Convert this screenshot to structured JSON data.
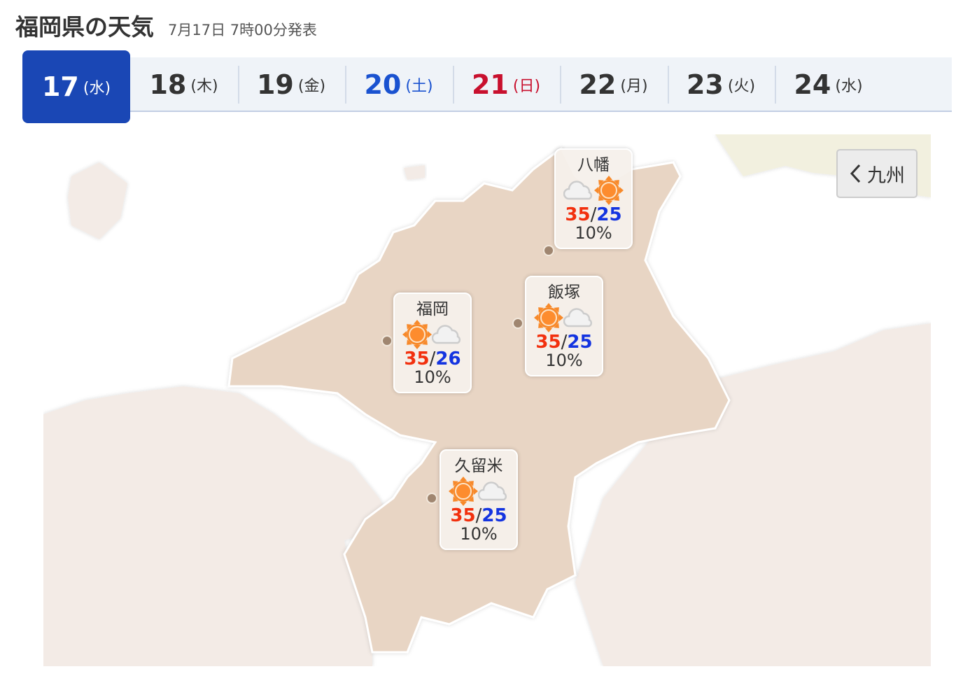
{
  "header": {
    "title": "福岡県の天気",
    "issued": "7月17日 7時00分発表"
  },
  "tabs": [
    {
      "day": "17",
      "weekday": "(水)",
      "color": "#ffffff",
      "active": true
    },
    {
      "day": "18",
      "weekday": "(木)",
      "color": "#333333"
    },
    {
      "day": "19",
      "weekday": "(金)",
      "color": "#333333"
    },
    {
      "day": "20",
      "weekday": "(土)",
      "color": "#1a52d0"
    },
    {
      "day": "21",
      "weekday": "(日)",
      "color": "#c8102e"
    },
    {
      "day": "22",
      "weekday": "(月)",
      "color": "#333333"
    },
    {
      "day": "23",
      "weekday": "(火)",
      "color": "#333333"
    },
    {
      "day": "24",
      "weekday": "(水)",
      "color": "#333333"
    }
  ],
  "back_button": {
    "label": "九州",
    "icon": "chevron-left-icon"
  },
  "cities": [
    {
      "name": "八幡",
      "icons": [
        "cloud",
        "sun"
      ],
      "high": "35",
      "low": "25",
      "rain": "10%"
    },
    {
      "name": "飯塚",
      "icons": [
        "sun",
        "cloud"
      ],
      "high": "35",
      "low": "25",
      "rain": "10%"
    },
    {
      "name": "福岡",
      "icons": [
        "sun",
        "cloud"
      ],
      "high": "35",
      "low": "26",
      "rain": "10%"
    },
    {
      "name": "久留米",
      "icons": [
        "sun",
        "cloud"
      ],
      "high": "35",
      "low": "25",
      "rain": "10%"
    }
  ],
  "separator": "/",
  "colors": {
    "high": "#f2300e",
    "low": "#1434e0",
    "active_tab": "#1a47b5",
    "prefecture": "#e8d5c4",
    "neighbor": "#f3ebe6"
  }
}
